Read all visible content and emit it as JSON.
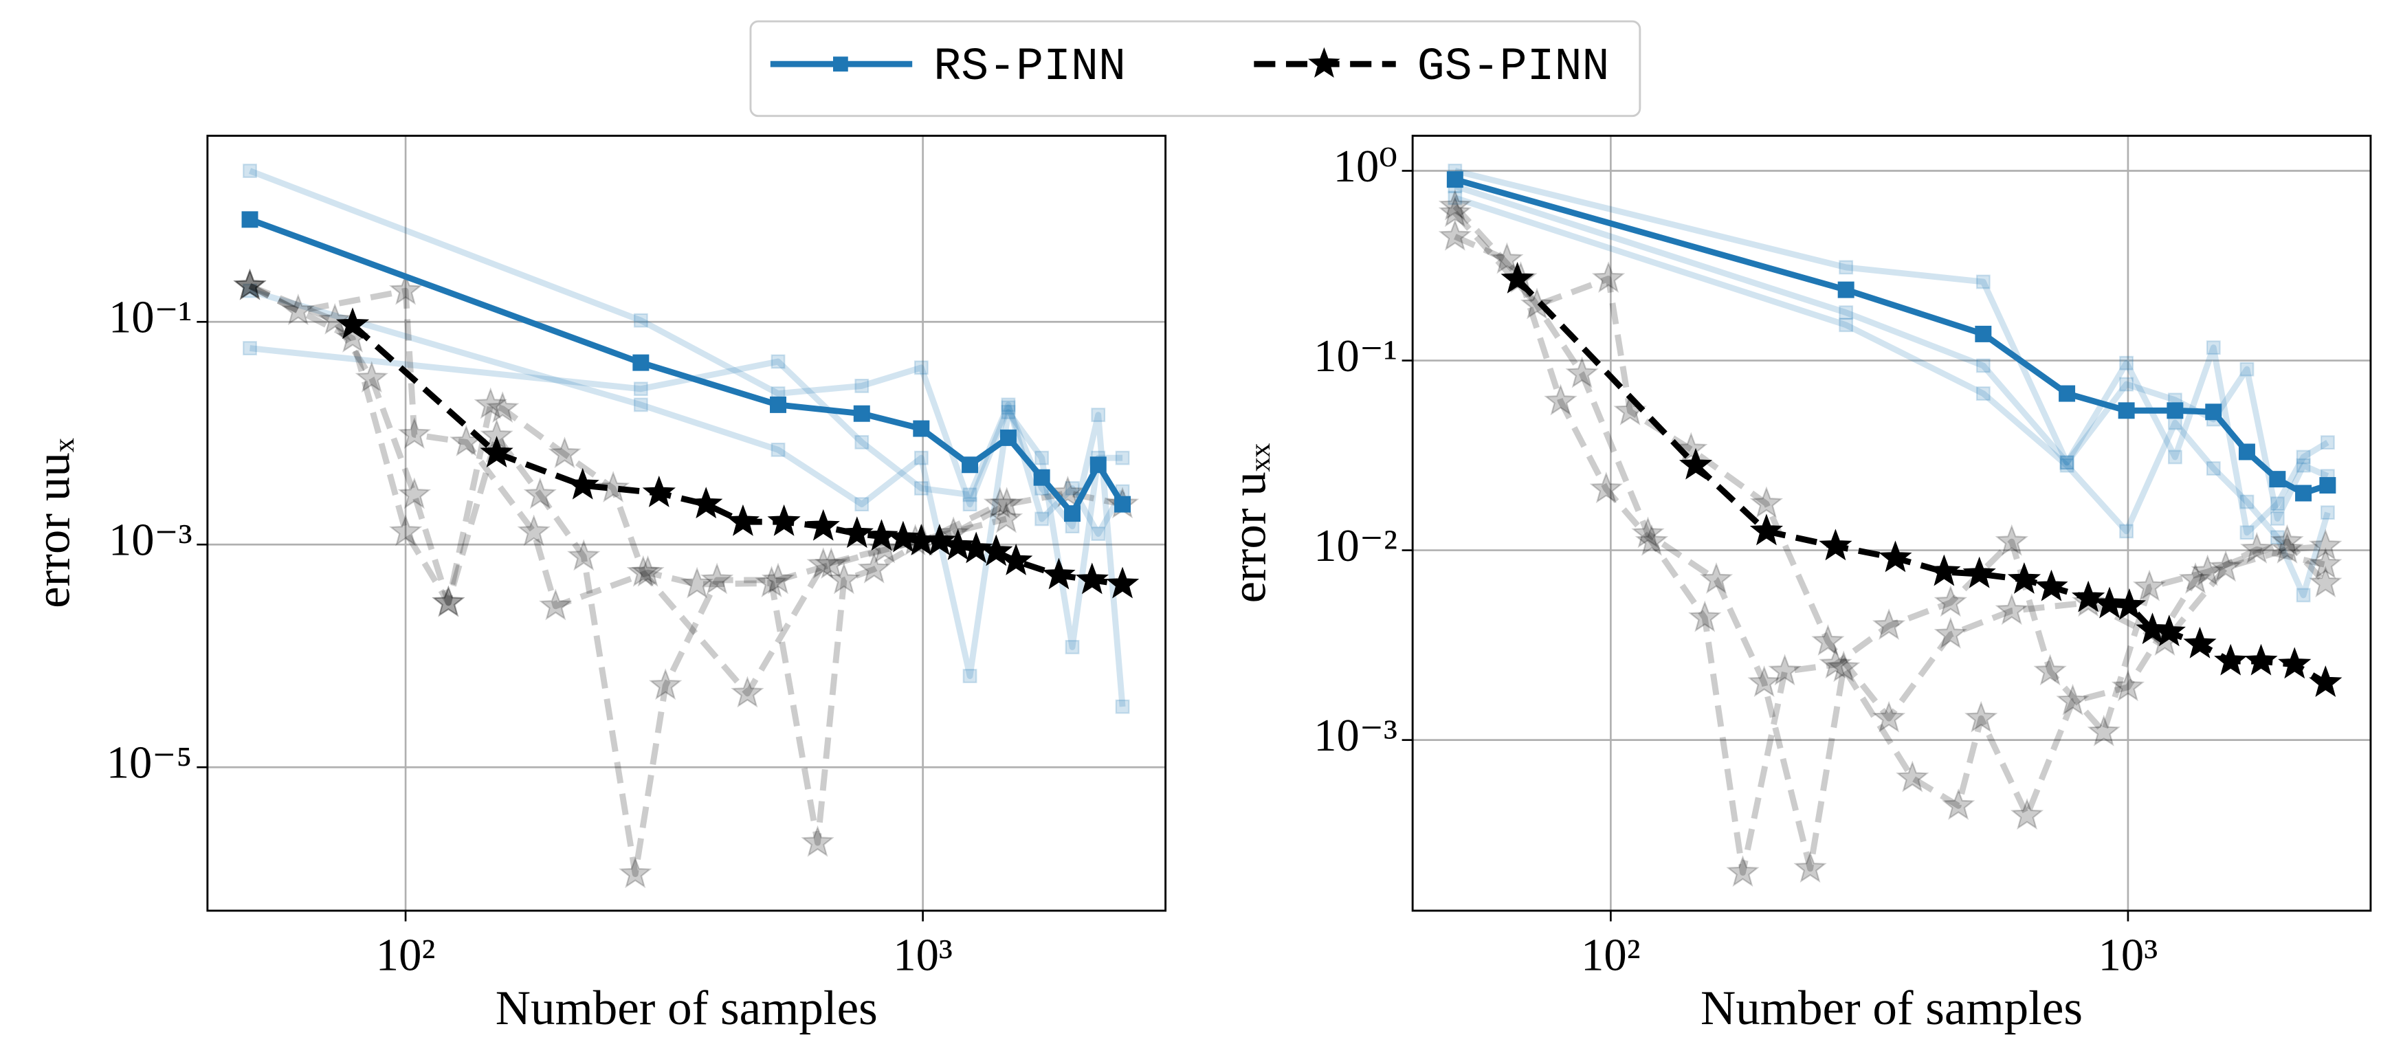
{
  "chart_data": [
    {
      "type": "line",
      "xlabel": "Number of samples",
      "ylabel": "error uuₓ",
      "xscale": "log",
      "yscale": "log",
      "grid": true,
      "legend": "upper center",
      "xlim": [
        41.4,
        2945
      ],
      "ylim": [
        5.15e-07,
        4.69
      ],
      "xticks": [
        {
          "value": 100,
          "label": "10²"
        },
        {
          "value": 1000,
          "label": "10³"
        }
      ],
      "yticks": [
        {
          "value": 0.1,
          "label": "10⁻¹"
        },
        {
          "value": 0.001,
          "label": "10⁻³"
        },
        {
          "value": 1e-05,
          "label": "10⁻⁵"
        }
      ],
      "series": [
        {
          "color": "#1f77b4",
          "alpha": 0.2,
          "marker": "square",
          "linestyle": "solid",
          "x": [
            50,
            285,
            525,
            762,
            993,
            1233,
            1463,
            1698,
            1945,
            2183,
            2432
          ],
          "values": [
            2.27,
            0.103,
            0.0227,
            0.0266,
            0.0388,
            0.0023,
            0.017,
            0.0032,
            0.00146,
            0.0146,
            3.5e-05
          ]
        },
        {
          "color": "#1f77b4",
          "alpha": 0.2,
          "marker": "square",
          "linestyle": "solid",
          "x": [
            50,
            285,
            525,
            762,
            993,
            1233,
            1463,
            1698,
            1945,
            2183,
            2432
          ],
          "values": [
            0.19,
            0.018,
            0.0071,
            0.0023,
            0.006,
            6.6e-05,
            0.0155,
            0.006,
            0.00012,
            0.006,
            0.006
          ]
        },
        {
          "color": "#1f77b4",
          "alpha": 0.2,
          "marker": "square",
          "linestyle": "solid",
          "x": [
            50,
            285,
            525,
            762,
            993,
            1233,
            1463,
            1698,
            1945,
            2183,
            2432
          ],
          "values": [
            0.058,
            0.025,
            0.044,
            0.0083,
            0.0032,
            0.0028,
            0.018,
            0.0017,
            0.0032,
            0.00125,
            0.003
          ]
        },
        {
          "color": "#000000",
          "alpha": 0.2,
          "marker": "star",
          "linestyle": "dashed",
          "x": [
            50,
            79,
            100,
            121,
            150,
            182,
            221,
            278,
            318,
            400,
            525,
            665,
            967,
            1450
          ],
          "values": [
            0.21,
            0.071,
            0.0013,
            0.0003,
            0.0094,
            0.0028,
            0.00078,
            1.1e-06,
            5.4e-05,
            0.00048,
            0.00048,
            0.00066,
            0.00107,
            0.0017
          ]
        },
        {
          "color": "#000000",
          "alpha": 0.2,
          "marker": "star",
          "linestyle": "dashed",
          "x": [
            50,
            62,
            100,
            104,
            131,
            177,
            195,
            294,
            366,
            510,
            626,
            704,
            805,
            1000,
            1410
          ],
          "values": [
            0.21,
            0.125,
            0.19,
            0.0097,
            0.0083,
            0.0013,
            0.00028,
            0.00056,
            0.00044,
            0.00045,
            2.1e-06,
            0.00048,
            0.0006,
            0.00107,
            0.0023
          ]
        },
        {
          "color": "#000000",
          "alpha": 0.2,
          "marker": "star",
          "linestyle": "dashed",
          "x": [
            50,
            73,
            86,
            104,
            121,
            146,
            154,
            203,
            252,
            288,
            458,
            642,
            844,
            1146,
            1453,
            1906,
            2432
          ],
          "values": [
            0.21,
            0.103,
            0.031,
            0.0028,
            0.0003,
            0.018,
            0.0166,
            0.0065,
            0.0032,
            0.00056,
            4.6e-05,
            0.00066,
            0.00091,
            0.00125,
            0.0023,
            0.0029,
            0.0023
          ]
        },
        {
          "name": "RS-PINN",
          "color": "#1f77b4",
          "alpha": 1,
          "marker": "square",
          "linestyle": "solid",
          "x": [
            50,
            285,
            525,
            762,
            993,
            1233,
            1463,
            1698,
            1945,
            2183,
            2432
          ],
          "values": [
            0.83,
            0.043,
            0.018,
            0.015,
            0.011,
            0.0052,
            0.0091,
            0.004,
            0.0019,
            0.0052,
            0.0023
          ]
        },
        {
          "name": "GS-PINN",
          "color": "#000000",
          "alpha": 1,
          "marker": "star",
          "linestyle": "dashed",
          "x": [
            79,
            150,
            220,
            309,
            381,
            449,
            539,
            642,
            746,
            832,
            916,
            993,
            1077,
            1169,
            1268,
            1386,
            1514,
            1832,
            2124,
            2432
          ],
          "values": [
            0.094,
            0.0066,
            0.0034,
            0.0029,
            0.0023,
            0.0016,
            0.0016,
            0.00145,
            0.00125,
            0.00118,
            0.00114,
            0.00107,
            0.00107,
            0.00097,
            0.00091,
            0.00086,
            0.00071,
            0.00053,
            0.00048,
            0.00044
          ]
        }
      ]
    },
    {
      "type": "line",
      "xlabel": "Number of samples",
      "ylabel": "error uₓₓ",
      "xscale": "log",
      "yscale": "log",
      "grid": true,
      "xlim": [
        41.4,
        2945
      ],
      "ylim": [
        0.000126,
        1.53
      ],
      "xticks": [
        {
          "value": 100,
          "label": "10²"
        },
        {
          "value": 1000,
          "label": "10³"
        }
      ],
      "yticks": [
        {
          "value": 1,
          "label": "10⁰"
        },
        {
          "value": 0.1,
          "label": "10⁻¹"
        },
        {
          "value": 0.01,
          "label": "10⁻²"
        },
        {
          "value": 0.001,
          "label": "10⁻³"
        }
      ],
      "series": [
        {
          "color": "#1f77b4",
          "alpha": 0.2,
          "marker": "square",
          "linestyle": "solid",
          "x": [
            50,
            285,
            525,
            762,
            993,
            1233,
            1463,
            1698,
            1945,
            2183,
            2432
          ],
          "values": [
            1.0,
            0.31,
            0.26,
            0.029,
            0.097,
            0.031,
            0.117,
            0.0124,
            0.0176,
            0.031,
            0.037
          ]
        },
        {
          "color": "#1f77b4",
          "alpha": 0.2,
          "marker": "square",
          "linestyle": "solid",
          "x": [
            50,
            285,
            525,
            762,
            993,
            1233,
            1463,
            1698,
            1945,
            2183,
            2432
          ],
          "values": [
            0.72,
            0.154,
            0.067,
            0.028,
            0.0126,
            0.047,
            0.027,
            0.018,
            0.0117,
            0.0058,
            0.0158
          ]
        },
        {
          "color": "#1f77b4",
          "alpha": 0.2,
          "marker": "square",
          "linestyle": "solid",
          "x": [
            50,
            285,
            525,
            762,
            993,
            1233,
            1463,
            1698,
            1945,
            2183,
            2432
          ],
          "values": [
            0.83,
            0.179,
            0.094,
            0.029,
            0.075,
            0.062,
            0.049,
            0.09,
            0.0147,
            0.028,
            0.0246
          ]
        },
        {
          "color": "#000000",
          "alpha": 0.2,
          "marker": "star",
          "linestyle": "dashed",
          "x": [
            50,
            67,
            80,
            98,
            120,
            152,
            180,
            217,
            272,
            345,
            454,
            596,
            707,
            898,
            1100,
            1425,
            2031,
            2409
          ],
          "values": [
            0.65,
            0.27,
            0.061,
            0.021,
            0.0111,
            0.0044,
            0.0002,
            0.0023,
            0.0025,
            0.004,
            0.0053,
            0.0111,
            0.0023,
            0.0011,
            0.0064,
            0.0077,
            0.0111,
            0.0067
          ]
        },
        {
          "color": "#000000",
          "alpha": 0.2,
          "marker": "star",
          "linestyle": "dashed",
          "x": [
            50,
            63,
            88,
            118,
            160,
            198,
            243,
            282,
            383,
            470,
            520,
            638,
            782,
            1000,
            1350,
            1774,
            2409
          ],
          "values": [
            0.45,
            0.34,
            0.085,
            0.0122,
            0.007,
            0.002,
            0.00021,
            0.0024,
            0.00063,
            0.00045,
            0.0013,
            0.0004,
            0.0016,
            0.0019,
            0.007,
            0.0101,
            0.0084
          ]
        },
        {
          "color": "#000000",
          "alpha": 0.2,
          "marker": "star",
          "linestyle": "dashed",
          "x": [
            50,
            72,
            99,
            109,
            143,
            200,
            263,
            345,
            454,
            596,
            838,
            1178,
            1545,
            2031,
            2409
          ],
          "values": [
            0.6,
            0.196,
            0.27,
            0.054,
            0.034,
            0.0176,
            0.0033,
            0.0013,
            0.0036,
            0.0048,
            0.0053,
            0.0033,
            0.0081,
            0.0101,
            0.0105
          ]
        },
        {
          "name": "RS-PINN",
          "color": "#1f77b4",
          "alpha": 1,
          "marker": "square",
          "linestyle": "solid",
          "x": [
            50,
            285,
            525,
            762,
            993,
            1233,
            1463,
            1698,
            1945,
            2183,
            2432
          ],
          "values": [
            0.9,
            0.236,
            0.138,
            0.067,
            0.0545,
            0.0545,
            0.0536,
            0.033,
            0.0237,
            0.02,
            0.022
          ]
        },
        {
          "name": "GS-PINN",
          "color": "#000000",
          "alpha": 1,
          "marker": "star",
          "linestyle": "dashed",
          "x": [
            66,
            146,
            200,
            272,
            355,
            441,
            516,
            630,
            711,
            838,
            921,
            1006,
            1115,
            1201,
            1377,
            1579,
            1808,
            2099,
            2409
          ],
          "values": [
            0.268,
            0.028,
            0.0126,
            0.0105,
            0.0091,
            0.0077,
            0.0075,
            0.007,
            0.0064,
            0.0056,
            0.0052,
            0.0051,
            0.0038,
            0.0037,
            0.0032,
            0.0026,
            0.0026,
            0.0025,
            0.002
          ]
        }
      ]
    }
  ]
}
